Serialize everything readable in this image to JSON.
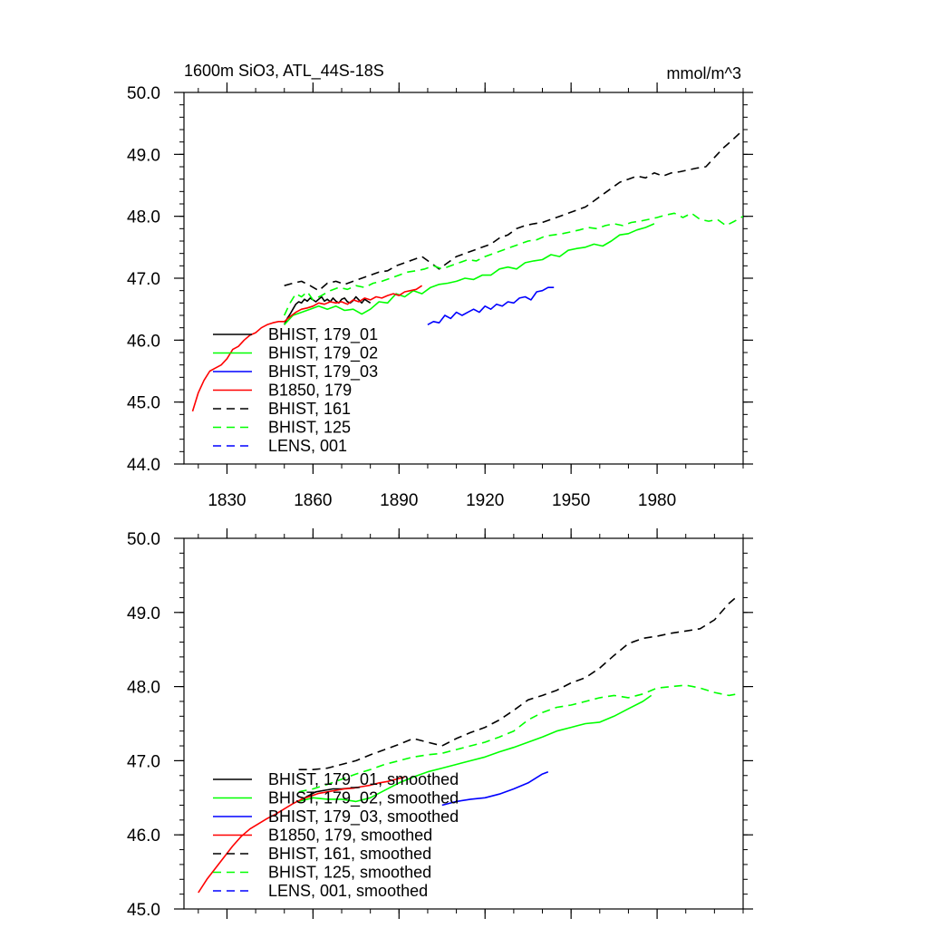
{
  "figure": {
    "title_left": "1600m SiO3, ATL_44S-18S",
    "title_right": "mmol/m^3"
  },
  "chart_data": [
    {
      "type": "line",
      "panel": "top",
      "xlim": [
        1815,
        2010
      ],
      "ylim": [
        44.0,
        50.0
      ],
      "x_ticks": [
        1830,
        1860,
        1890,
        1920,
        1950,
        1980
      ],
      "y_ticks": [
        44.0,
        45.0,
        46.0,
        47.0,
        48.0,
        49.0,
        50.0
      ],
      "y_tick_labels": [
        "44.0",
        "45.0",
        "46.0",
        "47.0",
        "48.0",
        "49.0",
        "50.0"
      ],
      "show_x_tick_labels": true,
      "legend_position": "bottom-left",
      "series": [
        {
          "name": "BHIST, 179_01",
          "color": "#000000",
          "dash": "solid",
          "x": [
            1850,
            1851,
            1852,
            1853,
            1854,
            1855,
            1856,
            1857,
            1858,
            1859,
            1860,
            1861,
            1862,
            1863,
            1864,
            1865,
            1866,
            1867,
            1868,
            1869,
            1870,
            1871,
            1872,
            1873,
            1874,
            1875,
            1876,
            1877,
            1878,
            1879,
            1880
          ],
          "y": [
            46.25,
            46.35,
            46.42,
            46.5,
            46.58,
            46.62,
            46.6,
            46.66,
            46.63,
            46.68,
            46.65,
            46.62,
            46.66,
            46.7,
            46.63,
            46.66,
            46.62,
            46.68,
            46.63,
            46.6,
            46.66,
            46.68,
            46.62,
            46.6,
            46.64,
            46.7,
            46.65,
            46.6,
            46.66,
            46.63,
            46.6
          ]
        },
        {
          "name": "BHIST, 179_02",
          "color": "#00ff00",
          "dash": "solid",
          "x": [
            1850,
            1853,
            1856,
            1859,
            1862,
            1865,
            1868,
            1871,
            1874,
            1877,
            1880,
            1883,
            1886,
            1889,
            1892,
            1895,
            1898,
            1901,
            1904,
            1907,
            1910,
            1913,
            1916,
            1919,
            1922,
            1925,
            1928,
            1931,
            1934,
            1937,
            1940,
            1943,
            1946,
            1949,
            1952,
            1955,
            1958,
            1961,
            1964,
            1967,
            1970,
            1973,
            1976,
            1979
          ],
          "y": [
            46.25,
            46.4,
            46.45,
            46.5,
            46.55,
            46.5,
            46.55,
            46.48,
            46.5,
            46.42,
            46.5,
            46.62,
            46.6,
            46.75,
            46.7,
            46.8,
            46.75,
            46.85,
            46.9,
            46.92,
            46.95,
            47.0,
            46.98,
            47.05,
            47.05,
            47.15,
            47.18,
            47.15,
            47.25,
            47.28,
            47.3,
            47.38,
            47.35,
            47.45,
            47.48,
            47.5,
            47.55,
            47.52,
            47.6,
            47.7,
            47.72,
            47.78,
            47.82,
            47.88
          ]
        },
        {
          "name": "BHIST, 179_03",
          "color": "#0000ff",
          "dash": "solid",
          "x": [
            1900,
            1902,
            1904,
            1906,
            1908,
            1910,
            1912,
            1914,
            1916,
            1918,
            1920,
            1922,
            1924,
            1926,
            1928,
            1930,
            1932,
            1934,
            1936,
            1938,
            1940,
            1942,
            1944
          ],
          "y": [
            46.25,
            46.3,
            46.28,
            46.4,
            46.35,
            46.45,
            46.4,
            46.45,
            46.5,
            46.45,
            46.55,
            46.5,
            46.58,
            46.55,
            46.62,
            46.6,
            46.68,
            46.7,
            46.65,
            46.78,
            46.8,
            46.85,
            46.85
          ]
        },
        {
          "name": "B1850, 179",
          "color": "#ff0000",
          "dash": "solid",
          "x": [
            1818,
            1820,
            1822,
            1824,
            1826,
            1828,
            1830,
            1832,
            1834,
            1836,
            1838,
            1840,
            1842,
            1844,
            1846,
            1848,
            1850,
            1852,
            1854,
            1856,
            1858,
            1860,
            1862,
            1864,
            1866,
            1868,
            1870,
            1872,
            1874,
            1876,
            1878,
            1880,
            1882,
            1884,
            1886,
            1888,
            1890,
            1892,
            1894,
            1896,
            1898
          ],
          "y": [
            44.85,
            45.15,
            45.35,
            45.5,
            45.55,
            45.6,
            45.7,
            45.85,
            45.9,
            46.0,
            46.08,
            46.12,
            46.2,
            46.25,
            46.28,
            46.3,
            46.3,
            46.38,
            46.45,
            46.5,
            46.52,
            46.55,
            46.6,
            46.58,
            46.62,
            46.6,
            46.62,
            46.58,
            46.65,
            46.62,
            46.68,
            46.65,
            46.7,
            46.68,
            46.72,
            46.75,
            46.72,
            46.78,
            46.8,
            46.82,
            46.88
          ]
        },
        {
          "name": "BHIST, 161",
          "color": "#000000",
          "dash": "dashed",
          "x": [
            1850,
            1853,
            1856,
            1859,
            1862,
            1865,
            1868,
            1871,
            1874,
            1877,
            1880,
            1883,
            1886,
            1889,
            1892,
            1895,
            1898,
            1901,
            1904,
            1907,
            1910,
            1913,
            1916,
            1919,
            1922,
            1925,
            1928,
            1931,
            1934,
            1937,
            1940,
            1943,
            1946,
            1949,
            1952,
            1955,
            1958,
            1961,
            1964,
            1967,
            1970,
            1973,
            1976,
            1979,
            1982,
            1985,
            1988,
            1991,
            1994,
            1997,
            2000,
            2003,
            2006,
            2009
          ],
          "y": [
            46.88,
            46.92,
            46.95,
            46.88,
            46.8,
            46.92,
            46.95,
            46.9,
            46.95,
            47.0,
            47.05,
            47.1,
            47.12,
            47.2,
            47.25,
            47.3,
            47.35,
            47.25,
            47.15,
            47.25,
            47.35,
            47.4,
            47.45,
            47.5,
            47.55,
            47.65,
            47.7,
            47.8,
            47.85,
            47.88,
            47.9,
            47.95,
            48.0,
            48.05,
            48.1,
            48.15,
            48.25,
            48.35,
            48.45,
            48.55,
            48.6,
            48.65,
            48.62,
            48.7,
            48.65,
            48.7,
            48.72,
            48.75,
            48.78,
            48.8,
            48.95,
            49.1,
            49.22,
            49.35
          ]
        },
        {
          "name": "BHIST, 125",
          "color": "#00ff00",
          "dash": "dashed",
          "x": [
            1850,
            1852,
            1854,
            1856,
            1858,
            1860,
            1863,
            1866,
            1869,
            1872,
            1875,
            1878,
            1881,
            1884,
            1887,
            1890,
            1893,
            1896,
            1899,
            1902,
            1905,
            1908,
            1911,
            1914,
            1917,
            1920,
            1923,
            1926,
            1929,
            1932,
            1935,
            1938,
            1941,
            1944,
            1947,
            1950,
            1953,
            1956,
            1959,
            1962,
            1965,
            1968,
            1971,
            1974,
            1977,
            1980,
            1983,
            1986,
            1989,
            1992,
            1995,
            1998,
            2001,
            2004,
            2007,
            2010
          ],
          "y": [
            46.4,
            46.6,
            46.75,
            46.7,
            46.78,
            46.65,
            46.72,
            46.8,
            46.85,
            46.82,
            46.88,
            46.85,
            46.92,
            46.95,
            47.0,
            47.05,
            47.1,
            47.12,
            47.15,
            47.2,
            47.15,
            47.2,
            47.25,
            47.3,
            47.28,
            47.35,
            47.4,
            47.45,
            47.5,
            47.55,
            47.6,
            47.62,
            47.68,
            47.7,
            47.72,
            47.75,
            47.78,
            47.82,
            47.8,
            47.85,
            47.88,
            47.85,
            47.9,
            47.92,
            47.95,
            47.98,
            48.02,
            48.05,
            47.98,
            48.05,
            47.95,
            47.92,
            47.95,
            47.85,
            47.92,
            48.0
          ]
        }
      ],
      "legend": [
        {
          "label": "BHIST, 179_01",
          "color": "#000000",
          "dash": "solid"
        },
        {
          "label": "BHIST, 179_02",
          "color": "#00ff00",
          "dash": "solid"
        },
        {
          "label": "BHIST, 179_03",
          "color": "#0000ff",
          "dash": "solid"
        },
        {
          "label": "B1850, 179",
          "color": "#ff0000",
          "dash": "solid"
        },
        {
          "label": "BHIST, 161",
          "color": "#000000",
          "dash": "dashed"
        },
        {
          "label": "BHIST, 125",
          "color": "#00ff00",
          "dash": "dashed"
        },
        {
          "label": "LENS, 001",
          "color": "#0000ff",
          "dash": "dashed"
        }
      ]
    },
    {
      "type": "line",
      "panel": "bottom",
      "xlim": [
        1815,
        2010
      ],
      "ylim": [
        45.0,
        50.0
      ],
      "x_ticks": [
        1830,
        1860,
        1890,
        1920,
        1950,
        1980
      ],
      "y_ticks": [
        45.0,
        46.0,
        47.0,
        48.0,
        49.0,
        50.0
      ],
      "y_tick_labels": [
        "45.0",
        "46.0",
        "47.0",
        "48.0",
        "49.0",
        "50.0"
      ],
      "show_x_tick_labels": false,
      "legend_position": "bottom-left",
      "series": [
        {
          "name": "BHIST, 179_01, smoothed",
          "color": "#000000",
          "dash": "solid",
          "x": [
            1855,
            1858,
            1861,
            1864,
            1867,
            1870,
            1873,
            1876
          ],
          "y": [
            46.45,
            46.52,
            46.58,
            46.6,
            46.62,
            46.62,
            46.63,
            46.64
          ]
        },
        {
          "name": "BHIST, 179_02, smoothed",
          "color": "#00ff00",
          "dash": "solid",
          "x": [
            1855,
            1860,
            1865,
            1870,
            1875,
            1880,
            1885,
            1890,
            1895,
            1900,
            1905,
            1910,
            1915,
            1920,
            1925,
            1930,
            1935,
            1940,
            1945,
            1950,
            1955,
            1960,
            1965,
            1970,
            1975,
            1978
          ],
          "y": [
            46.45,
            46.5,
            46.48,
            46.48,
            46.45,
            46.5,
            46.6,
            46.7,
            46.78,
            46.85,
            46.9,
            46.95,
            47.0,
            47.05,
            47.12,
            47.18,
            47.25,
            47.32,
            47.4,
            47.45,
            47.5,
            47.52,
            47.6,
            47.7,
            47.8,
            47.88
          ]
        },
        {
          "name": "BHIST, 179_03, smoothed",
          "color": "#0000ff",
          "dash": "solid",
          "x": [
            1905,
            1910,
            1915,
            1920,
            1925,
            1930,
            1935,
            1940,
            1942
          ],
          "y": [
            46.4,
            46.45,
            46.48,
            46.5,
            46.55,
            46.62,
            46.7,
            46.82,
            46.85
          ]
        },
        {
          "name": "B1850, 179, smoothed",
          "color": "#ff0000",
          "dash": "solid",
          "x": [
            1820,
            1823,
            1826,
            1829,
            1832,
            1835,
            1838,
            1841,
            1844,
            1847,
            1850,
            1853,
            1856,
            1859,
            1862,
            1865,
            1868,
            1871,
            1874,
            1877,
            1880,
            1883,
            1886,
            1889,
            1892
          ],
          "y": [
            45.22,
            45.4,
            45.55,
            45.7,
            45.85,
            45.98,
            46.08,
            46.15,
            46.22,
            46.28,
            46.35,
            46.42,
            46.48,
            46.52,
            46.56,
            46.58,
            46.6,
            46.62,
            46.63,
            46.65,
            46.67,
            46.7,
            46.72,
            46.75,
            46.78
          ]
        },
        {
          "name": "BHIST, 161, smoothed",
          "color": "#000000",
          "dash": "dashed",
          "x": [
            1855,
            1860,
            1865,
            1870,
            1875,
            1880,
            1885,
            1890,
            1895,
            1900,
            1905,
            1910,
            1915,
            1920,
            1925,
            1930,
            1935,
            1940,
            1945,
            1950,
            1955,
            1960,
            1965,
            1970,
            1975,
            1980,
            1985,
            1990,
            1995,
            2000,
            2005,
            2008
          ],
          "y": [
            46.88,
            46.88,
            46.9,
            46.95,
            47.0,
            47.08,
            47.15,
            47.22,
            47.3,
            47.25,
            47.2,
            47.3,
            47.38,
            47.45,
            47.55,
            47.68,
            47.82,
            47.88,
            47.95,
            48.05,
            48.12,
            48.25,
            48.42,
            48.58,
            48.65,
            48.68,
            48.72,
            48.75,
            48.78,
            48.9,
            49.12,
            49.22
          ]
        },
        {
          "name": "BHIST, 125, smoothed",
          "color": "#00ff00",
          "dash": "dashed",
          "x": [
            1855,
            1860,
            1865,
            1870,
            1875,
            1880,
            1885,
            1890,
            1895,
            1900,
            1905,
            1910,
            1915,
            1920,
            1925,
            1930,
            1935,
            1940,
            1945,
            1950,
            1955,
            1960,
            1965,
            1970,
            1975,
            1980,
            1985,
            1990,
            1995,
            2000,
            2005,
            2008
          ],
          "y": [
            46.58,
            46.62,
            46.68,
            46.75,
            46.82,
            46.88,
            46.95,
            47.0,
            47.05,
            47.08,
            47.1,
            47.15,
            47.2,
            47.25,
            47.32,
            47.4,
            47.55,
            47.65,
            47.72,
            47.75,
            47.8,
            47.85,
            47.88,
            47.85,
            47.9,
            47.98,
            48.0,
            48.02,
            47.98,
            47.92,
            47.88,
            47.9
          ]
        }
      ],
      "legend": [
        {
          "label": "BHIST, 179_01, smoothed",
          "color": "#000000",
          "dash": "solid"
        },
        {
          "label": "BHIST, 179_02, smoothed",
          "color": "#00ff00",
          "dash": "solid"
        },
        {
          "label": "BHIST, 179_03, smoothed",
          "color": "#0000ff",
          "dash": "solid"
        },
        {
          "label": "B1850, 179, smoothed",
          "color": "#ff0000",
          "dash": "solid"
        },
        {
          "label": "BHIST, 161, smoothed",
          "color": "#000000",
          "dash": "dashed"
        },
        {
          "label": "BHIST, 125, smoothed",
          "color": "#00ff00",
          "dash": "dashed"
        },
        {
          "label": "LENS, 001, smoothed",
          "color": "#0000ff",
          "dash": "dashed"
        }
      ]
    }
  ]
}
